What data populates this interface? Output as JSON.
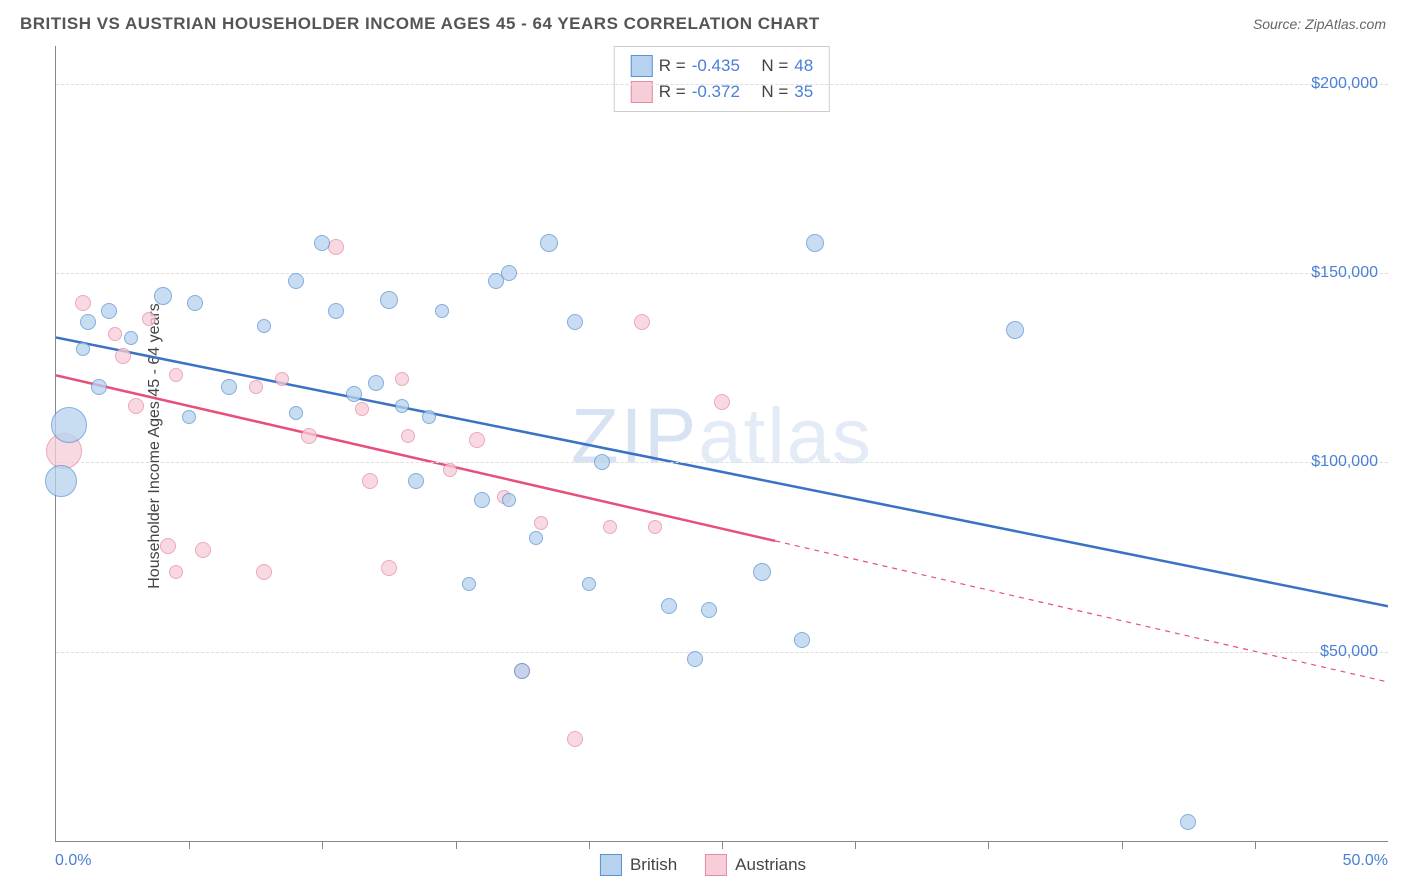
{
  "header": {
    "title": "BRITISH VS AUSTRIAN HOUSEHOLDER INCOME AGES 45 - 64 YEARS CORRELATION CHART",
    "source_label": "Source:",
    "source_name": "ZipAtlas.com"
  },
  "chart": {
    "type": "scatter",
    "y_axis_label": "Householder Income Ages 45 - 64 years",
    "xlim": [
      0,
      50
    ],
    "ylim": [
      0,
      210000
    ],
    "x_min_label": "0.0%",
    "x_max_label": "50.0%",
    "y_ticks": [
      50000,
      100000,
      150000,
      200000
    ],
    "y_tick_labels": [
      "$50,000",
      "$100,000",
      "$150,000",
      "$200,000"
    ],
    "x_tick_positions": [
      5,
      10,
      15,
      20,
      25,
      30,
      35,
      40,
      45
    ],
    "grid_color": "#dddddd",
    "background_color": "#ffffff",
    "watermark_text_bold": "ZIP",
    "watermark_text_thin": "atlas",
    "series": {
      "british": {
        "label": "British",
        "fill_color": "#b7d2ee",
        "stroke_color": "#5a93d1",
        "trend": {
          "x1": 0,
          "y1": 133000,
          "x2": 50,
          "y2": 62000,
          "color": "#3a72c4",
          "width": 2.5,
          "dash_from_x": null
        },
        "points": [
          {
            "x": 0.5,
            "y": 110000,
            "r": 18
          },
          {
            "x": 0.2,
            "y": 95000,
            "r": 16
          },
          {
            "x": 1.2,
            "y": 137000,
            "r": 8
          },
          {
            "x": 1.0,
            "y": 130000,
            "r": 7
          },
          {
            "x": 2.0,
            "y": 140000,
            "r": 8
          },
          {
            "x": 1.6,
            "y": 120000,
            "r": 8
          },
          {
            "x": 2.8,
            "y": 133000,
            "r": 7
          },
          {
            "x": 4.0,
            "y": 144000,
            "r": 9
          },
          {
            "x": 5.2,
            "y": 142000,
            "r": 8
          },
          {
            "x": 6.5,
            "y": 120000,
            "r": 8
          },
          {
            "x": 5.0,
            "y": 112000,
            "r": 7
          },
          {
            "x": 7.8,
            "y": 136000,
            "r": 7
          },
          {
            "x": 9.0,
            "y": 148000,
            "r": 8
          },
          {
            "x": 9.0,
            "y": 113000,
            "r": 7
          },
          {
            "x": 10.5,
            "y": 140000,
            "r": 8
          },
          {
            "x": 10.0,
            "y": 158000,
            "r": 8
          },
          {
            "x": 11.2,
            "y": 118000,
            "r": 8
          },
          {
            "x": 12.5,
            "y": 143000,
            "r": 9
          },
          {
            "x": 12.0,
            "y": 121000,
            "r": 8
          },
          {
            "x": 13.0,
            "y": 115000,
            "r": 7
          },
          {
            "x": 13.5,
            "y": 95000,
            "r": 8
          },
          {
            "x": 14.5,
            "y": 140000,
            "r": 7
          },
          {
            "x": 14.0,
            "y": 112000,
            "r": 7
          },
          {
            "x": 15.5,
            "y": 68000,
            "r": 7
          },
          {
            "x": 16.5,
            "y": 148000,
            "r": 8
          },
          {
            "x": 16.0,
            "y": 90000,
            "r": 8
          },
          {
            "x": 17.0,
            "y": 150000,
            "r": 8
          },
          {
            "x": 17.0,
            "y": 90000,
            "r": 7
          },
          {
            "x": 17.5,
            "y": 45000,
            "r": 8
          },
          {
            "x": 18.5,
            "y": 158000,
            "r": 9
          },
          {
            "x": 18.0,
            "y": 80000,
            "r": 7
          },
          {
            "x": 19.5,
            "y": 137000,
            "r": 8
          },
          {
            "x": 20.5,
            "y": 100000,
            "r": 8
          },
          {
            "x": 20.0,
            "y": 68000,
            "r": 7
          },
          {
            "x": 23.0,
            "y": 62000,
            "r": 8
          },
          {
            "x": 24.0,
            "y": 48000,
            "r": 8
          },
          {
            "x": 24.5,
            "y": 61000,
            "r": 8
          },
          {
            "x": 26.5,
            "y": 71000,
            "r": 9
          },
          {
            "x": 28.5,
            "y": 158000,
            "r": 9
          },
          {
            "x": 28.0,
            "y": 53000,
            "r": 8
          },
          {
            "x": 36.0,
            "y": 135000,
            "r": 9
          },
          {
            "x": 42.5,
            "y": 5000,
            "r": 8
          }
        ]
      },
      "austrians": {
        "label": "Austrians",
        "fill_color": "#f7cdd8",
        "stroke_color": "#e68ba5",
        "trend": {
          "x1": 0,
          "y1": 123000,
          "x2": 50,
          "y2": 42000,
          "color": "#e6507a",
          "width": 2.5,
          "dash_from_x": 27
        },
        "points": [
          {
            "x": 0.3,
            "y": 103000,
            "r": 18
          },
          {
            "x": 1.0,
            "y": 142000,
            "r": 8
          },
          {
            "x": 2.2,
            "y": 134000,
            "r": 7
          },
          {
            "x": 2.5,
            "y": 128000,
            "r": 8
          },
          {
            "x": 3.0,
            "y": 115000,
            "r": 8
          },
          {
            "x": 3.5,
            "y": 138000,
            "r": 7
          },
          {
            "x": 4.5,
            "y": 123000,
            "r": 7
          },
          {
            "x": 4.2,
            "y": 78000,
            "r": 8
          },
          {
            "x": 4.5,
            "y": 71000,
            "r": 7
          },
          {
            "x": 5.5,
            "y": 77000,
            "r": 8
          },
          {
            "x": 7.5,
            "y": 120000,
            "r": 7
          },
          {
            "x": 7.8,
            "y": 71000,
            "r": 8
          },
          {
            "x": 8.5,
            "y": 122000,
            "r": 7
          },
          {
            "x": 9.5,
            "y": 107000,
            "r": 8
          },
          {
            "x": 10.5,
            "y": 157000,
            "r": 8
          },
          {
            "x": 11.5,
            "y": 114000,
            "r": 7
          },
          {
            "x": 11.8,
            "y": 95000,
            "r": 8
          },
          {
            "x": 12.5,
            "y": 72000,
            "r": 8
          },
          {
            "x": 13.0,
            "y": 122000,
            "r": 7
          },
          {
            "x": 13.2,
            "y": 107000,
            "r": 7
          },
          {
            "x": 14.8,
            "y": 98000,
            "r": 7
          },
          {
            "x": 15.8,
            "y": 106000,
            "r": 8
          },
          {
            "x": 16.8,
            "y": 91000,
            "r": 7
          },
          {
            "x": 17.5,
            "y": 45000,
            "r": 8
          },
          {
            "x": 18.2,
            "y": 84000,
            "r": 7
          },
          {
            "x": 19.5,
            "y": 27000,
            "r": 8
          },
          {
            "x": 20.8,
            "y": 83000,
            "r": 7
          },
          {
            "x": 22.0,
            "y": 137000,
            "r": 8
          },
          {
            "x": 22.5,
            "y": 83000,
            "r": 7
          },
          {
            "x": 25.0,
            "y": 116000,
            "r": 8
          }
        ]
      }
    },
    "correlation_box": {
      "rows": [
        {
          "series": "british",
          "r_label": "R =",
          "r_value": "-0.435",
          "n_label": "N =",
          "n_value": "48"
        },
        {
          "series": "austrians",
          "r_label": "R =",
          "r_value": "-0.372",
          "n_label": "N =",
          "n_value": "35"
        }
      ]
    }
  }
}
